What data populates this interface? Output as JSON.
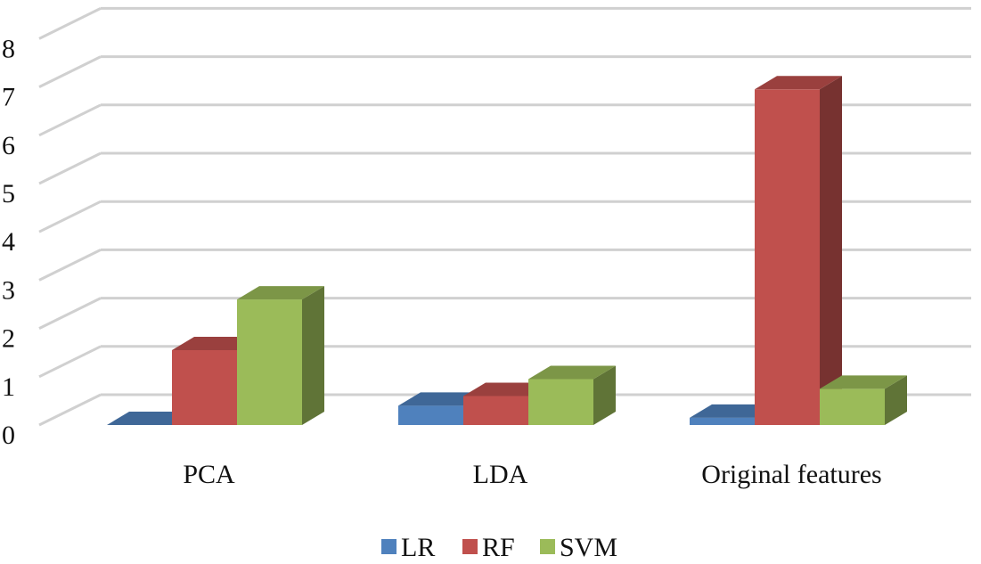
{
  "chart_data": {
    "type": "bar",
    "style": "3d-clustered-column",
    "categories": [
      "PCA",
      "LDA",
      "Original features"
    ],
    "series": [
      {
        "name": "LR",
        "values": [
          0.0,
          0.4,
          0.15
        ],
        "color": "#4F81BD"
      },
      {
        "name": "RF",
        "values": [
          1.55,
          0.6,
          6.95
        ],
        "color": "#C0504D"
      },
      {
        "name": "SVM",
        "values": [
          2.6,
          0.95,
          0.75
        ],
        "color": "#9BBB59"
      }
    ],
    "ylim": [
      0,
      8
    ],
    "y_ticks": [
      "0",
      "1",
      "2",
      "3",
      "4",
      "5",
      "6",
      "7",
      "8"
    ],
    "grid": true,
    "legend_position": "bottom"
  }
}
